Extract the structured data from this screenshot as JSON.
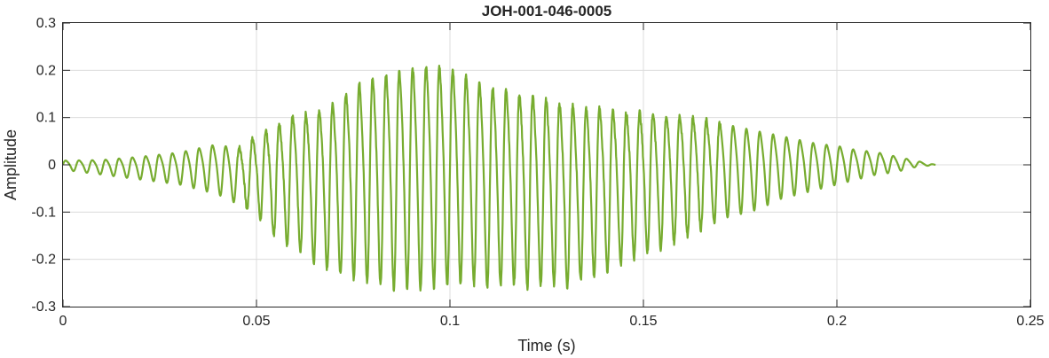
{
  "chart_data": {
    "type": "line",
    "title": "JOH-001-046-0005",
    "xlabel": "Time (s)",
    "ylabel": "Amplitude",
    "xlim": [
      0,
      0.25
    ],
    "ylim": [
      -0.3,
      0.3
    ],
    "grid": true,
    "x_ticks": [
      0,
      0.05,
      0.1,
      0.15,
      0.2,
      0.25
    ],
    "x_tick_labels": [
      "0",
      "0.05",
      "0.1",
      "0.15",
      "0.2",
      "0.25"
    ],
    "y_ticks": [
      -0.3,
      -0.2,
      -0.1,
      0,
      0.1,
      0.2,
      0.3
    ],
    "y_tick_labels": [
      "-0.3",
      "-0.2",
      "-0.1",
      "0",
      "0.1",
      "0.2",
      "0.3"
    ],
    "series": [
      {
        "color": "#77ac30",
        "x_start": 0,
        "x_end": 0.2255,
        "envelope": {
          "t": [
            0,
            0.01,
            0.02,
            0.03,
            0.04,
            0.045,
            0.05,
            0.055,
            0.06,
            0.065,
            0.07,
            0.075,
            0.08,
            0.085,
            0.09,
            0.095,
            0.1,
            0.105,
            0.11,
            0.115,
            0.12,
            0.125,
            0.13,
            0.135,
            0.14,
            0.145,
            0.15,
            0.155,
            0.16,
            0.165,
            0.17,
            0.175,
            0.18,
            0.185,
            0.19,
            0.195,
            0.2,
            0.205,
            0.21,
            0.215,
            0.22,
            0.2255
          ],
          "pos": [
            0.01,
            0.012,
            0.02,
            0.03,
            0.05,
            0.04,
            0.07,
            0.1,
            0.12,
            0.13,
            0.15,
            0.19,
            0.21,
            0.22,
            0.23,
            0.24,
            0.23,
            0.21,
            0.19,
            0.18,
            0.17,
            0.16,
            0.15,
            0.14,
            0.14,
            0.13,
            0.13,
            0.12,
            0.12,
            0.11,
            0.1,
            0.09,
            0.08,
            0.07,
            0.06,
            0.05,
            0.045,
            0.035,
            0.03,
            0.02,
            0.01,
            0.0
          ],
          "neg": [
            -0.01,
            -0.02,
            -0.03,
            -0.04,
            -0.06,
            -0.08,
            -0.1,
            -0.15,
            -0.17,
            -0.2,
            -0.22,
            -0.23,
            -0.24,
            -0.25,
            -0.25,
            -0.25,
            -0.24,
            -0.24,
            -0.25,
            -0.24,
            -0.25,
            -0.24,
            -0.25,
            -0.23,
            -0.22,
            -0.2,
            -0.18,
            -0.17,
            -0.15,
            -0.13,
            -0.11,
            -0.1,
            -0.09,
            -0.07,
            -0.06,
            -0.05,
            -0.04,
            -0.03,
            -0.02,
            -0.015,
            -0.005,
            0.0
          ]
        },
        "cycle_period_s": 0.00345
      }
    ]
  }
}
